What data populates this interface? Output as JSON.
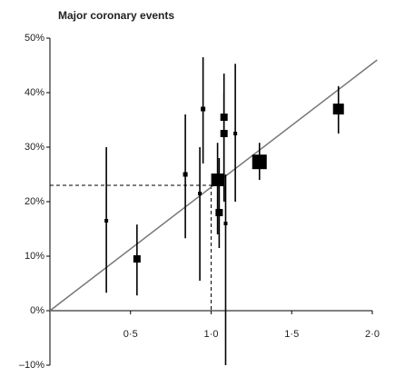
{
  "chart_data": {
    "type": "scatter",
    "title": "Major coronary events",
    "x": [
      0.35,
      0.54,
      0.84,
      0.93,
      0.95,
      1.04,
      1.05,
      1.08,
      1.08,
      1.09,
      1.15,
      1.3,
      1.79
    ],
    "values": [
      16.5,
      9.5,
      25,
      21.5,
      37,
      24,
      18,
      35.5,
      32.5,
      16,
      32.5,
      27.3,
      37
    ],
    "ci_low": [
      3.3,
      2.8,
      13.3,
      5.5,
      27,
      14,
      11.5,
      20,
      23,
      -10,
      20,
      24,
      32.5
    ],
    "ci_high": [
      30,
      15.8,
      36,
      30,
      46.5,
      30.8,
      28,
      43.5,
      40,
      25,
      45.3,
      30.8,
      41.2
    ],
    "sizes": [
      4,
      8,
      5,
      4,
      5,
      14,
      8,
      8,
      8,
      4,
      4,
      16,
      12
    ],
    "color": "#000000",
    "fit_line": {
      "x": [
        0,
        2.03
      ],
      "y": [
        0,
        46
      ],
      "color": "#777777"
    },
    "reference": {
      "x": 1.0,
      "y": 23
    },
    "xlim": [
      0,
      2.0
    ],
    "xticks": [
      {
        "value": 0.5,
        "label": "0·5"
      },
      {
        "value": 1.0,
        "label": "1·0"
      },
      {
        "value": 1.5,
        "label": "1·5"
      },
      {
        "value": 2.0,
        "label": "2·0"
      }
    ],
    "ylim": [
      -10,
      50
    ],
    "yticks": [
      {
        "value": -10,
        "label": "–10%"
      },
      {
        "value": 0,
        "label": "0%"
      },
      {
        "value": 10,
        "label": "10%"
      },
      {
        "value": 20,
        "label": "20%"
      },
      {
        "value": 30,
        "label": "30%"
      },
      {
        "value": 40,
        "label": "40%"
      },
      {
        "value": 50,
        "label": "50%"
      }
    ]
  }
}
